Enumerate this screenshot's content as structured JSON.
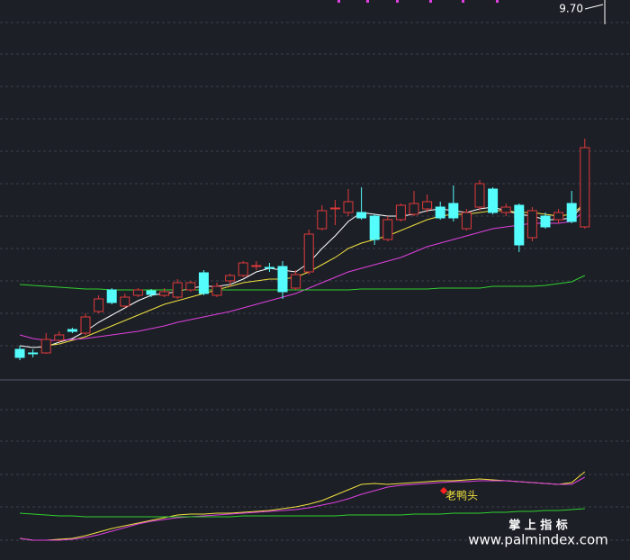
{
  "chart_data": {
    "type": "candlestick",
    "ylim": [
      5.6,
      9.8
    ],
    "price_label": {
      "value": 9.7,
      "label": "9.70"
    },
    "up_color": "#e03a3a",
    "down_color": "#54fcfc",
    "candles": {
      "open": [
        5.92,
        5.88,
        5.88,
        6.02,
        6.14,
        6.1,
        6.34,
        6.58,
        6.4,
        6.52,
        6.57,
        6.52,
        6.5,
        6.58,
        6.77,
        6.52,
        6.68,
        6.74,
        6.84,
        6.83,
        6.84,
        6.6,
        6.78,
        7.26,
        7.48,
        7.44,
        7.44,
        7.4,
        7.14,
        7.36,
        7.42,
        7.48,
        7.5,
        7.54,
        7.26,
        7.5,
        7.7,
        7.44,
        7.52,
        7.16,
        7.4,
        7.36,
        7.54,
        7.28
      ],
      "high": [
        5.96,
        5.92,
        6.1,
        6.12,
        6.16,
        6.32,
        6.52,
        6.6,
        6.54,
        6.6,
        6.59,
        6.6,
        6.7,
        6.68,
        6.8,
        6.66,
        6.76,
        6.9,
        6.9,
        6.88,
        6.9,
        6.8,
        7.25,
        7.52,
        7.58,
        7.7,
        7.72,
        7.42,
        7.4,
        7.54,
        7.68,
        7.64,
        7.56,
        7.74,
        7.48,
        7.8,
        7.72,
        7.54,
        7.54,
        7.5,
        7.44,
        7.48,
        7.68,
        8.26
      ],
      "low": [
        5.8,
        5.83,
        5.87,
        6.0,
        6.1,
        6.08,
        6.32,
        6.42,
        6.38,
        6.5,
        6.5,
        6.5,
        6.48,
        6.56,
        6.52,
        6.5,
        6.62,
        6.72,
        6.8,
        6.78,
        6.48,
        6.58,
        6.75,
        7.24,
        7.3,
        7.4,
        7.36,
        7.08,
        7.12,
        7.34,
        7.4,
        7.44,
        7.36,
        7.34,
        7.24,
        7.46,
        7.42,
        7.4,
        7.0,
        7.12,
        7.26,
        7.32,
        7.32,
        7.26
      ],
      "close": [
        5.83,
        5.87,
        6.03,
        6.08,
        6.12,
        6.28,
        6.48,
        6.44,
        6.5,
        6.58,
        6.53,
        6.56,
        6.66,
        6.66,
        6.54,
        6.62,
        6.74,
        6.88,
        6.85,
        6.82,
        6.56,
        6.75,
        7.2,
        7.46,
        7.49,
        7.56,
        7.38,
        7.14,
        7.36,
        7.52,
        7.54,
        7.56,
        7.38,
        7.38,
        7.44,
        7.76,
        7.44,
        7.5,
        7.08,
        7.46,
        7.28,
        7.44,
        7.34,
        8.16
      ]
    },
    "lines": [
      {
        "color": "#ffffff",
        "values": [
          5.96,
          5.94,
          5.95,
          6.0,
          6.04,
          6.12,
          6.22,
          6.3,
          6.38,
          6.46,
          6.52,
          6.54,
          6.56,
          6.6,
          6.62,
          6.62,
          6.64,
          6.7,
          6.78,
          6.82,
          6.8,
          6.78,
          6.88,
          7.04,
          7.18,
          7.34,
          7.44,
          7.42,
          7.4,
          7.4,
          7.42,
          7.46,
          7.48,
          7.46,
          7.44,
          7.48,
          7.5,
          7.46,
          7.42,
          7.4,
          7.36,
          7.36,
          7.38,
          7.54
        ]
      },
      {
        "color": "#f0e040",
        "values": [
          null,
          null,
          5.96,
          5.98,
          6.02,
          6.06,
          6.12,
          6.18,
          6.24,
          6.3,
          6.36,
          6.42,
          6.46,
          6.5,
          6.54,
          6.58,
          6.62,
          6.66,
          6.68,
          6.7,
          6.7,
          6.72,
          6.78,
          6.86,
          6.94,
          7.04,
          7.1,
          7.14,
          7.18,
          7.24,
          7.3,
          7.36,
          7.4,
          7.42,
          7.42,
          7.44,
          7.46,
          7.46,
          7.44,
          7.44,
          7.42,
          7.4,
          7.42,
          7.54
        ]
      },
      {
        "color": "#e040e0",
        "values": [
          6.08,
          6.04,
          6.02,
          6.02,
          6.03,
          6.04,
          6.06,
          6.08,
          6.1,
          6.12,
          6.15,
          6.18,
          6.22,
          6.25,
          6.28,
          6.31,
          6.34,
          6.38,
          6.42,
          6.46,
          6.5,
          6.54,
          6.6,
          6.66,
          6.72,
          6.78,
          6.82,
          6.86,
          6.9,
          6.94,
          7.0,
          7.06,
          7.1,
          7.14,
          7.18,
          7.22,
          7.26,
          7.28,
          7.3,
          7.32,
          7.32,
          7.32,
          7.34,
          7.46
        ]
      },
      {
        "color": "#30d030",
        "values": [
          6.64,
          6.63,
          6.62,
          6.61,
          6.6,
          6.59,
          6.59,
          6.58,
          6.58,
          6.58,
          6.58,
          6.58,
          6.58,
          6.58,
          6.58,
          6.58,
          6.58,
          6.58,
          6.58,
          6.58,
          6.58,
          6.58,
          6.58,
          6.58,
          6.58,
          6.58,
          6.59,
          6.59,
          6.59,
          6.59,
          6.59,
          6.59,
          6.6,
          6.6,
          6.6,
          6.6,
          6.62,
          6.62,
          6.62,
          6.62,
          6.63,
          6.65,
          6.67,
          6.74
        ]
      }
    ],
    "indicator": {
      "ylim": [
        0,
        200
      ],
      "series": [
        {
          "color": "#f0e040",
          "values": [
            22,
            20,
            20,
            21,
            22,
            25,
            29,
            33,
            36,
            39,
            42,
            45,
            48,
            49,
            49,
            50,
            50,
            51,
            52,
            53,
            55,
            57,
            60,
            64,
            70,
            76,
            82,
            83,
            82,
            83,
            84,
            85,
            86,
            86,
            87,
            88,
            87,
            86,
            85,
            84,
            83,
            82,
            84,
            96
          ]
        },
        {
          "color": "#e040e0",
          "values": [
            22,
            20,
            20,
            20,
            21,
            23,
            26,
            30,
            34,
            38,
            41,
            43,
            45,
            46,
            47,
            48,
            49,
            50,
            51,
            52,
            53,
            54,
            56,
            59,
            62,
            66,
            71,
            75,
            79,
            81,
            82,
            83,
            84,
            85,
            85,
            86,
            86,
            86,
            85,
            84,
            83,
            82,
            82,
            90
          ]
        },
        {
          "color": "#30d030",
          "values": [
            50,
            49,
            48,
            47,
            47,
            46,
            46,
            46,
            46,
            46,
            46,
            46,
            46,
            46,
            46,
            46,
            46,
            47,
            47,
            47,
            47,
            47,
            47,
            47,
            47,
            48,
            48,
            48,
            48,
            48,
            49,
            49,
            49,
            50,
            50,
            50,
            51,
            51,
            52,
            52,
            53,
            53,
            54,
            55
          ]
        }
      ],
      "annotation": "老鸭头"
    },
    "watermark": [
      "掌 上 指 标",
      "www.palmindex.com"
    ]
  }
}
